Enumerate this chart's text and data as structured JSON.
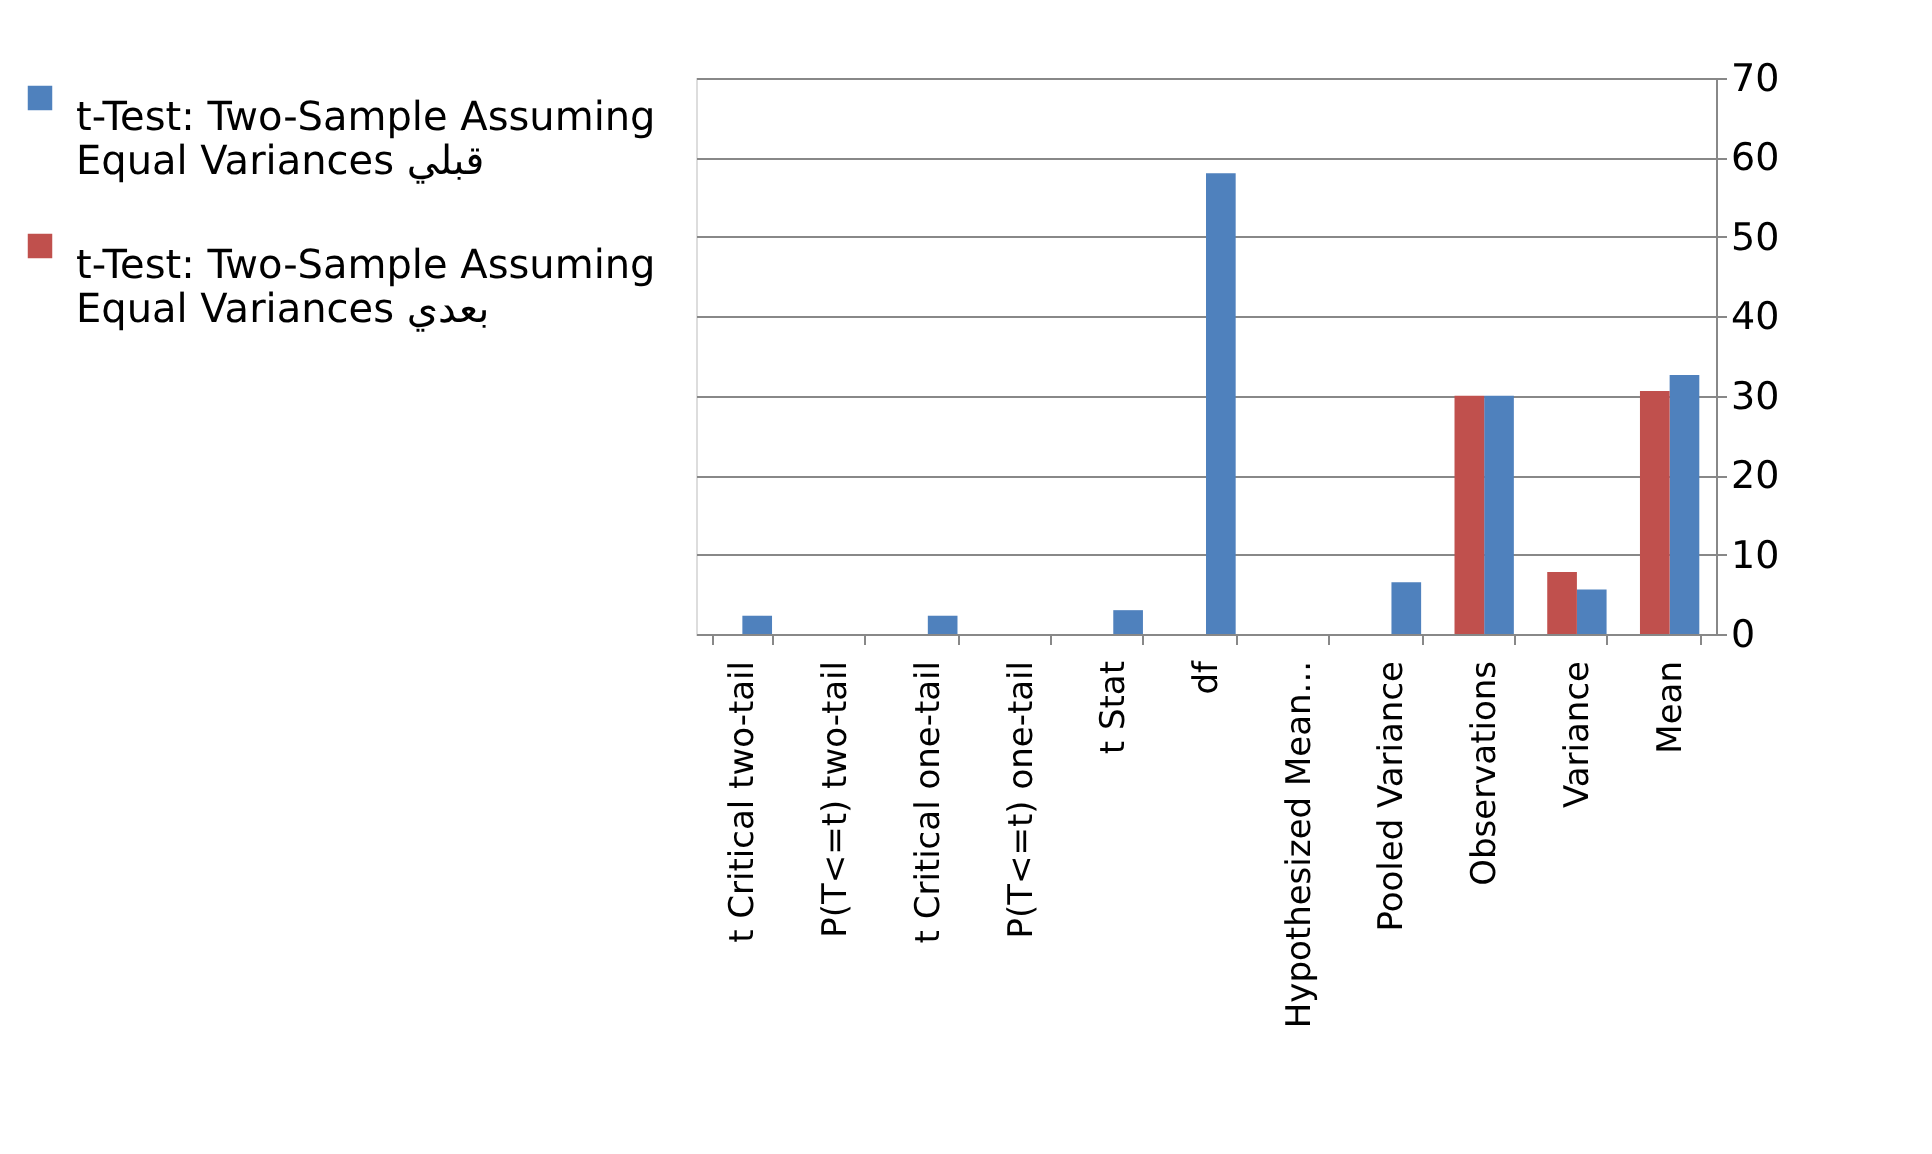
{
  "chart_data": {
    "type": "bar",
    "categories": [
      "t Critical two-tail",
      "P(T<=t) two-tail",
      "t Critical one-tail",
      "P(T<=t) one-tail",
      "t Stat",
      "df",
      "Hypothesized Mean...",
      "Pooled Variance",
      "Observations",
      "Variance",
      "Mean"
    ],
    "series": [
      {
        "name": "t-Test: Two-Sample Assuming Equal Variances قبلي",
        "color": "#4f81bd",
        "values": [
          2.3,
          0,
          2.3,
          0,
          3.0,
          58,
          0,
          6.5,
          30,
          5.6,
          32.6
        ]
      },
      {
        "name": "t-Test: Two-Sample Assuming Equal Variances بعدي",
        "color": "#c0504d",
        "values": [
          null,
          null,
          null,
          null,
          null,
          null,
          null,
          null,
          30,
          7.8,
          30.6
        ]
      }
    ],
    "ylim": [
      0,
      70
    ],
    "yticks": [
      0,
      10,
      20,
      30,
      40,
      50,
      60,
      70
    ],
    "grid": "y",
    "legend": "left"
  }
}
